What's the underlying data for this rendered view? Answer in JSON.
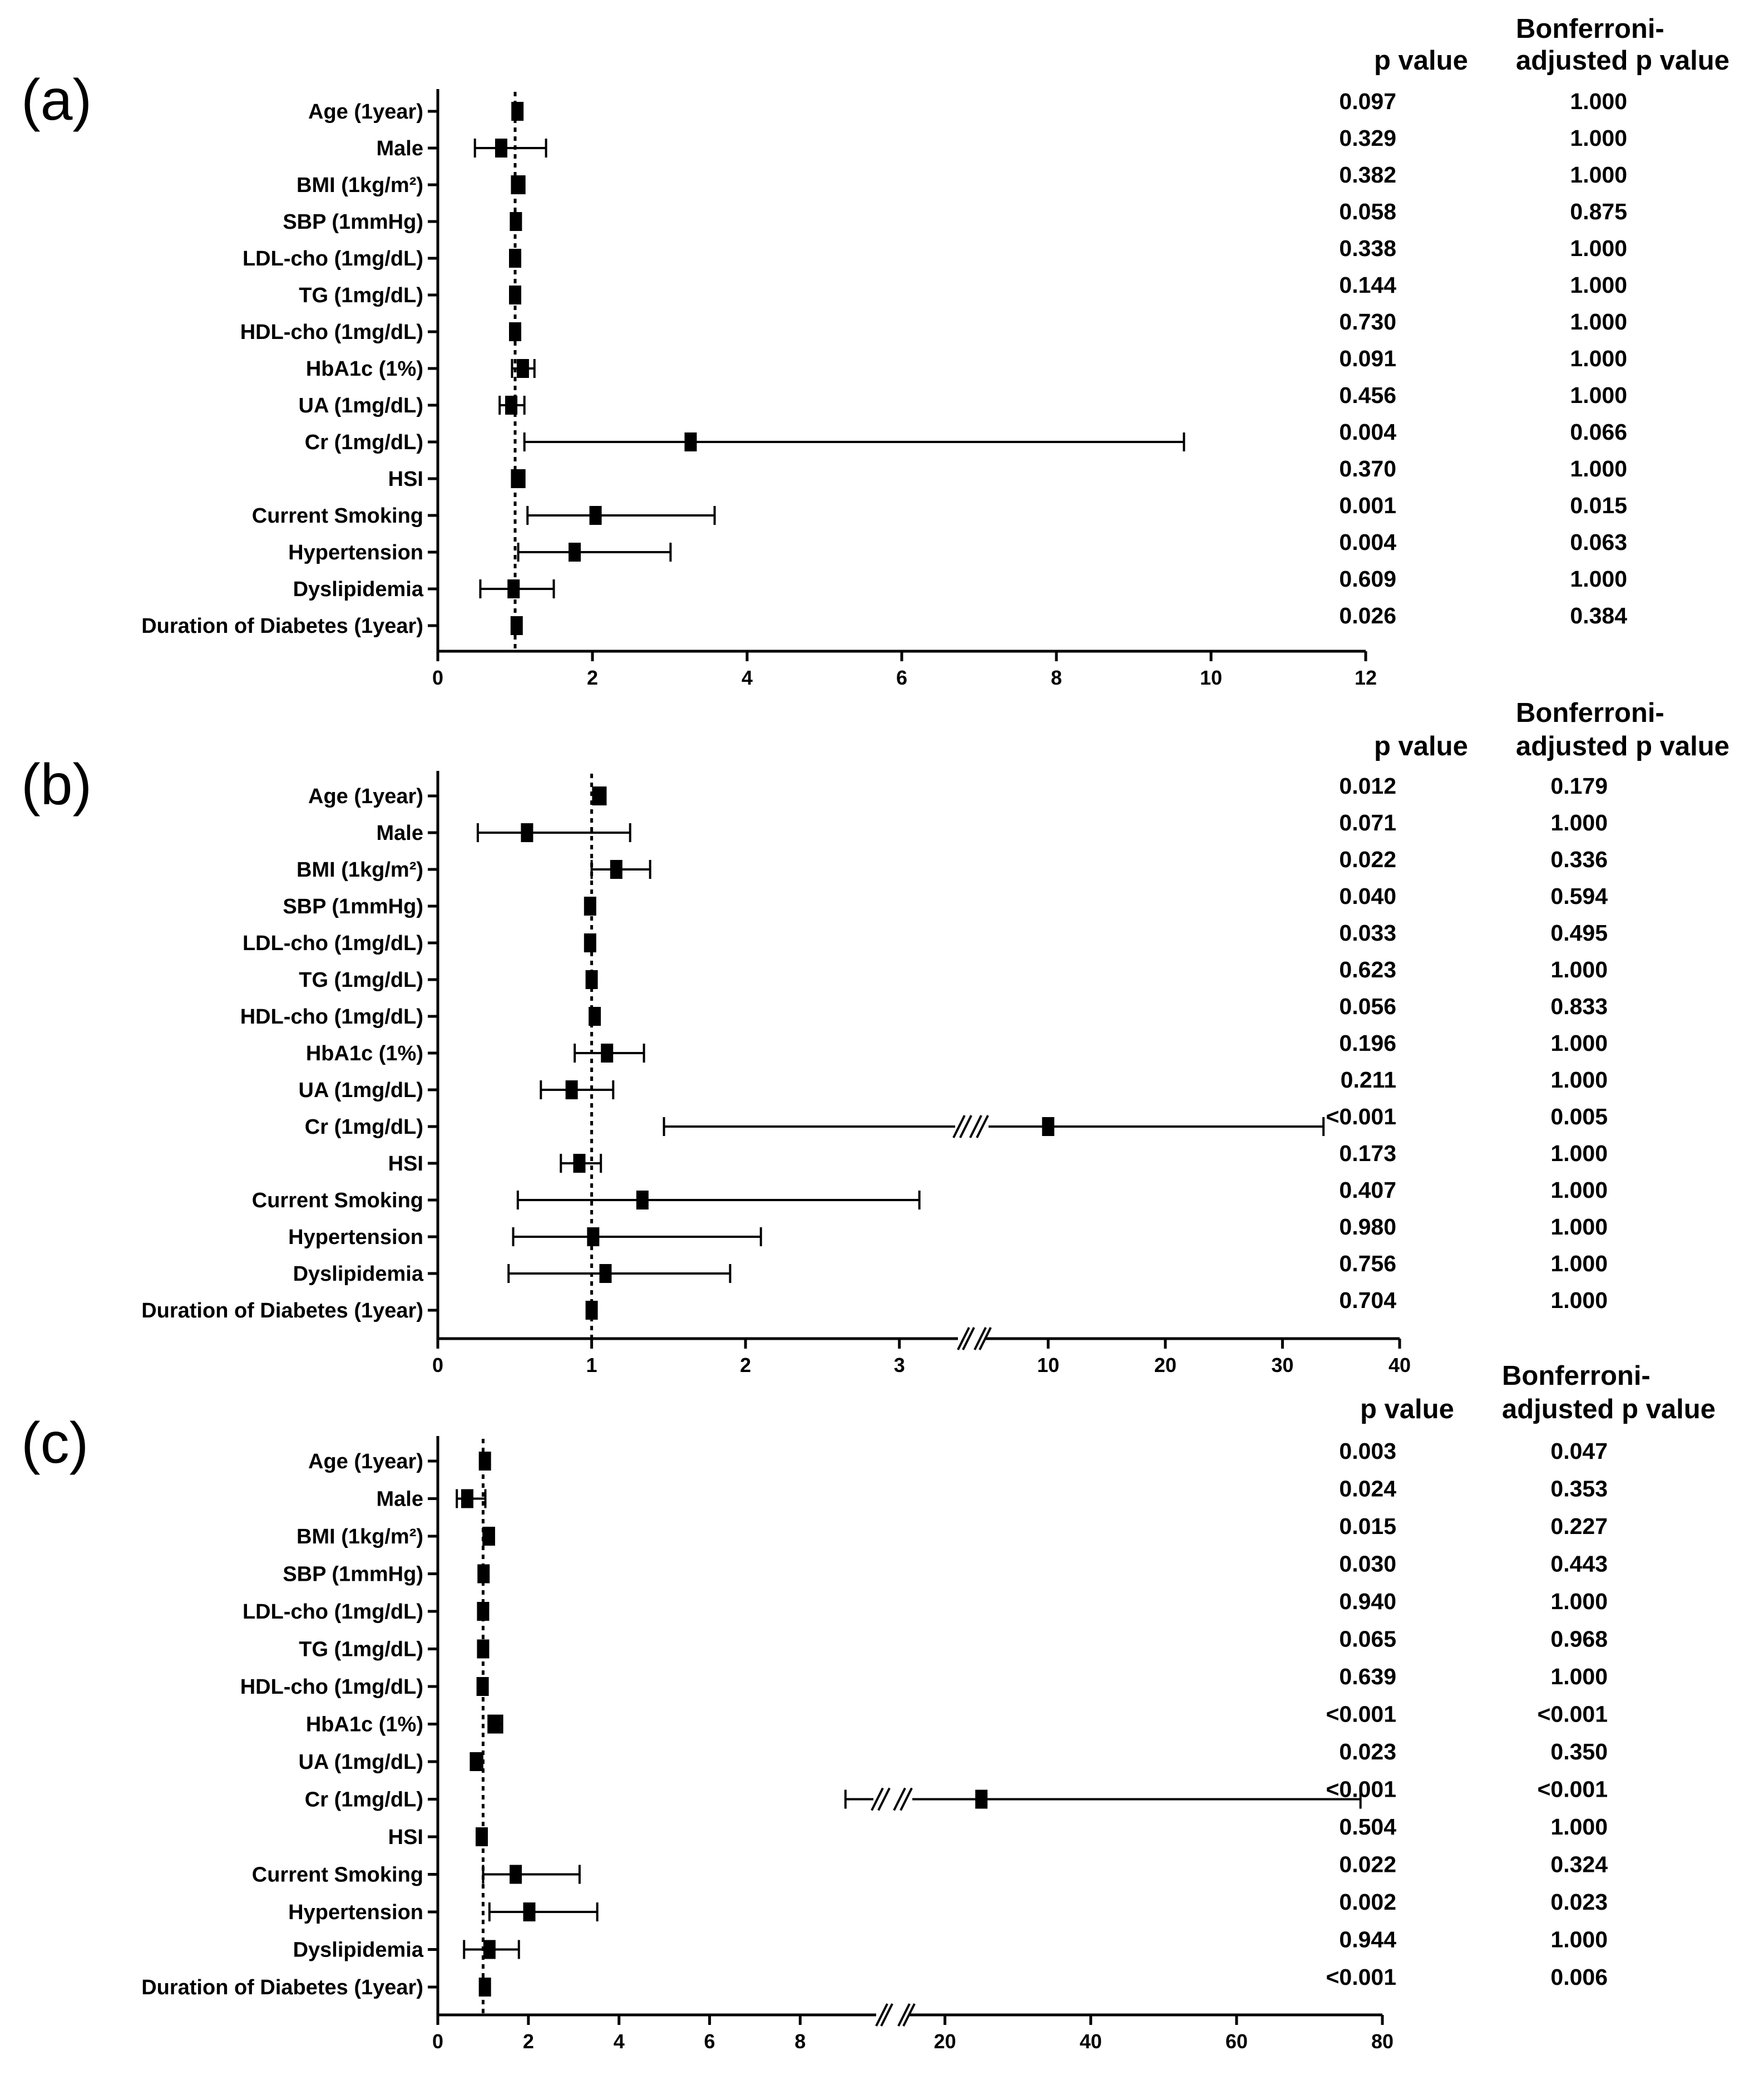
{
  "figure": {
    "header_p": "p value",
    "header_adj_line1": "Bonferroni-",
    "header_adj_line2": "adjusted p value"
  },
  "chart_data": [
    {
      "type": "forest",
      "panel": "(a)",
      "reference_value": 1,
      "rows": [
        {
          "label": "Age (1year)",
          "est": 1.03,
          "lo": 0.99,
          "hi": 1.07,
          "p": "0.097",
          "adj": "1.000"
        },
        {
          "label": "Male",
          "est": 0.82,
          "lo": 0.48,
          "hi": 1.4,
          "p": "0.329",
          "adj": "1.000"
        },
        {
          "label": "BMI (1kg/m²)",
          "est": 1.03,
          "lo": 0.96,
          "hi": 1.12,
          "p": "0.382",
          "adj": "1.000"
        },
        {
          "label": "SBP (1mmHg)",
          "est": 1.01,
          "lo": 1.0,
          "hi": 1.03,
          "p": "0.058",
          "adj": "0.875"
        },
        {
          "label": "LDL-cho (1mg/dL)",
          "est": 1.0,
          "lo": 0.99,
          "hi": 1.01,
          "p": "0.338",
          "adj": "1.000"
        },
        {
          "label": "TG (1mg/dL)",
          "est": 1.0,
          "lo": 1.0,
          "hi": 1.01,
          "p": "0.144",
          "adj": "1.000"
        },
        {
          "label": "HDL-cho (1mg/dL)",
          "est": 1.0,
          "lo": 0.98,
          "hi": 1.02,
          "p": "0.730",
          "adj": "1.000"
        },
        {
          "label": "HbA1c (1%)",
          "est": 1.1,
          "lo": 0.96,
          "hi": 1.25,
          "p": "0.091",
          "adj": "1.000"
        },
        {
          "label": "UA (1mg/dL)",
          "est": 0.95,
          "lo": 0.8,
          "hi": 1.12,
          "p": "0.456",
          "adj": "1.000"
        },
        {
          "label": "Cr (1mg/dL)",
          "est": 3.27,
          "lo": 1.12,
          "hi": 9.65,
          "p": "0.004",
          "adj": "0.066"
        },
        {
          "label": "HSI",
          "est": 1.04,
          "lo": 0.96,
          "hi": 1.12,
          "p": "0.370",
          "adj": "1.000"
        },
        {
          "label": "Current Smoking",
          "est": 2.04,
          "lo": 1.16,
          "hi": 3.58,
          "p": "0.001",
          "adj": "0.015"
        },
        {
          "label": "Hypertension",
          "est": 1.77,
          "lo": 1.04,
          "hi": 3.01,
          "p": "0.004",
          "adj": "0.063"
        },
        {
          "label": "Dyslipidemia",
          "est": 0.98,
          "lo": 0.55,
          "hi": 1.5,
          "p": "0.609",
          "adj": "1.000"
        },
        {
          "label": "Duration of Diabetes (1year)",
          "est": 1.02,
          "lo": 1.0,
          "hi": 1.04,
          "p": "0.026",
          "adj": "0.384"
        }
      ],
      "x_ticks": [
        "0",
        "2",
        "4",
        "6",
        "8",
        "10",
        "12"
      ],
      "xlim": [
        0,
        12
      ]
    },
    {
      "type": "forest",
      "panel": "(b)",
      "reference_value": 1,
      "axis_break": {
        "low_segment": [
          0,
          3.5
        ],
        "high_segment": [
          6,
          40
        ]
      },
      "rows": [
        {
          "label": "Age (1year)",
          "est": 1.05,
          "lo": 1.01,
          "hi": 1.09,
          "p": "0.012",
          "adj": "0.179"
        },
        {
          "label": "Male",
          "est": 0.58,
          "lo": 0.26,
          "hi": 1.25,
          "p": "0.071",
          "adj": "1.000"
        },
        {
          "label": "BMI (1kg/m²)",
          "est": 1.16,
          "lo": 1.0,
          "hi": 1.38,
          "p": "0.022",
          "adj": "0.336"
        },
        {
          "label": "SBP (1mmHg)",
          "est": 0.99,
          "lo": 0.97,
          "hi": 1.0,
          "p": "0.040",
          "adj": "0.594"
        },
        {
          "label": "LDL-cho (1mg/dL)",
          "est": 0.99,
          "lo": 0.98,
          "hi": 1.01,
          "p": "0.033",
          "adj": "0.495"
        },
        {
          "label": "TG (1mg/dL)",
          "est": 1.0,
          "lo": 0.99,
          "hi": 1.01,
          "p": "0.623",
          "adj": "1.000"
        },
        {
          "label": "HDL-cho (1mg/dL)",
          "est": 1.02,
          "lo": 0.99,
          "hi": 1.04,
          "p": "0.056",
          "adj": "0.833"
        },
        {
          "label": "HbA1c (1%)",
          "est": 1.1,
          "lo": 0.89,
          "hi": 1.34,
          "p": "0.196",
          "adj": "1.000"
        },
        {
          "label": "UA (1mg/dL)",
          "est": 0.87,
          "lo": 0.67,
          "hi": 1.14,
          "p": "0.211",
          "adj": "1.000"
        },
        {
          "label": "Cr (1mg/dL)",
          "est": 10.0,
          "lo": 1.47,
          "hi": 33.5,
          "p": "<0.001",
          "adj": "0.005"
        },
        {
          "label": "HSI",
          "est": 0.92,
          "lo": 0.8,
          "hi": 1.06,
          "p": "0.173",
          "adj": "1.000"
        },
        {
          "label": "Current Smoking",
          "est": 1.33,
          "lo": 0.52,
          "hi": 3.13,
          "p": "0.407",
          "adj": "1.000"
        },
        {
          "label": "Hypertension",
          "est": 1.01,
          "lo": 0.49,
          "hi": 2.1,
          "p": "0.980",
          "adj": "1.000"
        },
        {
          "label": "Dyslipidemia",
          "est": 1.09,
          "lo": 0.46,
          "hi": 1.9,
          "p": "0.756",
          "adj": "1.000"
        },
        {
          "label": "Duration of Diabetes (1year)",
          "est": 1.0,
          "lo": 0.97,
          "hi": 1.03,
          "p": "0.704",
          "adj": "1.000"
        }
      ],
      "x_ticks": [
        "0",
        "1",
        "2",
        "3",
        "10",
        "20",
        "30",
        "40"
      ]
    },
    {
      "type": "forest",
      "panel": "(c)",
      "reference_value": 1,
      "axis_break": {
        "low_segment": [
          0,
          9.8
        ],
        "high_segment": [
          14,
          80
        ]
      },
      "rows": [
        {
          "label": "Age (1year)",
          "est": 1.04,
          "lo": 1.01,
          "hi": 1.08,
          "p": "0.003",
          "adj": "0.047"
        },
        {
          "label": "Male",
          "est": 0.65,
          "lo": 0.42,
          "hi": 1.05,
          "p": "0.024",
          "adj": "0.353"
        },
        {
          "label": "BMI (1kg/m²)",
          "est": 1.12,
          "lo": 1.02,
          "hi": 1.24,
          "p": "0.015",
          "adj": "0.227"
        },
        {
          "label": "SBP (1mmHg)",
          "est": 1.01,
          "lo": 1.0,
          "hi": 1.03,
          "p": "0.030",
          "adj": "0.443"
        },
        {
          "label": "LDL-cho (1mg/dL)",
          "est": 1.0,
          "lo": 0.99,
          "hi": 1.01,
          "p": "0.940",
          "adj": "1.000"
        },
        {
          "label": "TG (1mg/dL)",
          "est": 1.0,
          "lo": 1.0,
          "hi": 1.01,
          "p": "0.065",
          "adj": "0.968"
        },
        {
          "label": "HDL-cho (1mg/dL)",
          "est": 0.99,
          "lo": 0.97,
          "hi": 1.01,
          "p": "0.639",
          "adj": "1.000"
        },
        {
          "label": "HbA1c (1%)",
          "est": 1.26,
          "lo": 1.12,
          "hi": 1.42,
          "p": "<0.001",
          "adj": "<0.001"
        },
        {
          "label": "UA (1mg/dL)",
          "est": 0.85,
          "lo": 0.73,
          "hi": 0.98,
          "p": "0.023",
          "adj": "0.350"
        },
        {
          "label": "Cr (1mg/dL)",
          "est": 25.0,
          "lo": 9.0,
          "hi": 77.0,
          "p": "<0.001",
          "adj": "<0.001"
        },
        {
          "label": "HSI",
          "est": 0.97,
          "lo": 0.9,
          "hi": 1.05,
          "p": "0.504",
          "adj": "1.000"
        },
        {
          "label": "Current Smoking",
          "est": 1.72,
          "lo": 1.0,
          "hi": 3.13,
          "p": "0.022",
          "adj": "0.324"
        },
        {
          "label": "Hypertension",
          "est": 2.02,
          "lo": 1.14,
          "hi": 3.52,
          "p": "0.002",
          "adj": "0.023"
        },
        {
          "label": "Dyslipidemia",
          "est": 1.14,
          "lo": 0.58,
          "hi": 1.79,
          "p": "0.944",
          "adj": "1.000"
        },
        {
          "label": "Duration of Diabetes (1year)",
          "est": 1.04,
          "lo": 1.02,
          "hi": 1.07,
          "p": "<0.001",
          "adj": "0.006"
        }
      ],
      "x_ticks": [
        "0",
        "2",
        "4",
        "6",
        "8",
        "20",
        "40",
        "60",
        "80"
      ]
    }
  ]
}
